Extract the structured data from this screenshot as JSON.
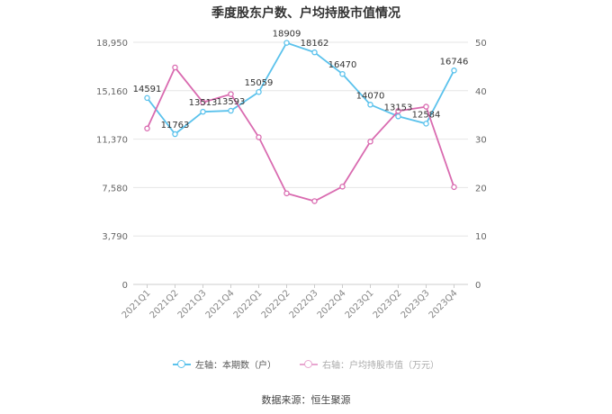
{
  "chart_data": {
    "type": "line",
    "title": "季度股东户数、户均持股市值情况",
    "categories": [
      "2021Q1",
      "2021Q2",
      "2021Q3",
      "2021Q4",
      "2022Q1",
      "2022Q2",
      "2022Q3",
      "2022Q4",
      "2023Q1",
      "2023Q2",
      "2023Q3",
      "2023Q4"
    ],
    "left_axis": {
      "ticks": [
        "0",
        "3,790",
        "7,580",
        "11,370",
        "15,160",
        "18,950"
      ],
      "range": [
        0,
        18950
      ]
    },
    "right_axis": {
      "ticks": [
        "0",
        "10",
        "20",
        "30",
        "40",
        "50"
      ],
      "range": [
        0,
        50
      ]
    },
    "series": [
      {
        "name": "左轴：本期数（户）",
        "axis": "left",
        "color": "#5bc2ec",
        "values": [
          14591,
          11763,
          13513,
          13593,
          15059,
          18909,
          18162,
          16470,
          14070,
          13153,
          12584,
          16746
        ],
        "labels": [
          "14591",
          "11763",
          "13513",
          "13593",
          "15059",
          "18909",
          "18162",
          "16470",
          "14070",
          "13153",
          "12584",
          "16746"
        ]
      },
      {
        "name": "右轴：户均持股市值（万元）",
        "axis": "right",
        "color": "#d96bb0",
        "values": [
          32.2,
          44.8,
          37.6,
          39.3,
          30.4,
          18.8,
          17.2,
          20.2,
          29.5,
          35.8,
          36.7,
          20.1
        ]
      }
    ],
    "grid": true,
    "legend_position": "bottom"
  },
  "footer": {
    "source": "数据来源：恒生聚源"
  }
}
